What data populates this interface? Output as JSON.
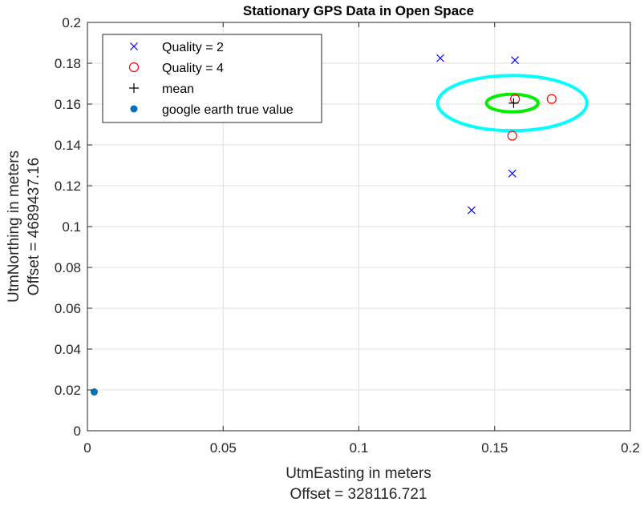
{
  "chart_data": {
    "type": "scatter",
    "title": "Stationary GPS Data in Open Space",
    "xlabel": "UtmEasting in meters",
    "xlabel_offset": "Offset = 328116.721",
    "ylabel": "UtmNorthing in meters",
    "ylabel_offset": "Offset = 4689437.16",
    "xlim": [
      0,
      0.2
    ],
    "ylim": [
      0,
      0.2
    ],
    "xticks": [
      0,
      0.05,
      0.1,
      0.15,
      0.2
    ],
    "xtick_labels": [
      "0",
      "0.05",
      "0.1",
      "0.15",
      "0.2"
    ],
    "yticks": [
      0,
      0.02,
      0.04,
      0.06,
      0.08,
      0.1,
      0.12,
      0.14,
      0.16,
      0.18,
      0.2
    ],
    "ytick_labels": [
      "0",
      "0.02",
      "0.04",
      "0.06",
      "0.08",
      "0.1",
      "0.12",
      "0.14",
      "0.16",
      "0.18",
      "0.2"
    ],
    "grid": true,
    "legend_position": "top-left",
    "series": [
      {
        "name": "Quality = 2",
        "marker": "x",
        "color": "#0000ff",
        "x": [
          0.13,
          0.1575,
          0.1415,
          0.1565
        ],
        "y": [
          0.1825,
          0.1815,
          0.108,
          0.126
        ]
      },
      {
        "name": "Quality = 4",
        "marker": "circle",
        "color": "#ff0000",
        "x": [
          0.1575,
          0.1565,
          0.171
        ],
        "y": [
          0.1625,
          0.1445,
          0.1625
        ]
      },
      {
        "name": "mean",
        "marker": "plus",
        "color": "#000000",
        "x": [
          0.157
        ],
        "y": [
          0.1605
        ]
      },
      {
        "name": "google earth true value",
        "marker": "dot",
        "color": "#0072bd",
        "x": [
          0.0025
        ],
        "y": [
          0.019
        ]
      }
    ],
    "ellipses": [
      {
        "cx": 0.1565,
        "cy": 0.1605,
        "rx": 0.0275,
        "ry": 0.0135,
        "color": "#00ffff"
      },
      {
        "cx": 0.1565,
        "cy": 0.1605,
        "rx": 0.0095,
        "ry": 0.0043,
        "color": "#00ee00"
      }
    ]
  }
}
